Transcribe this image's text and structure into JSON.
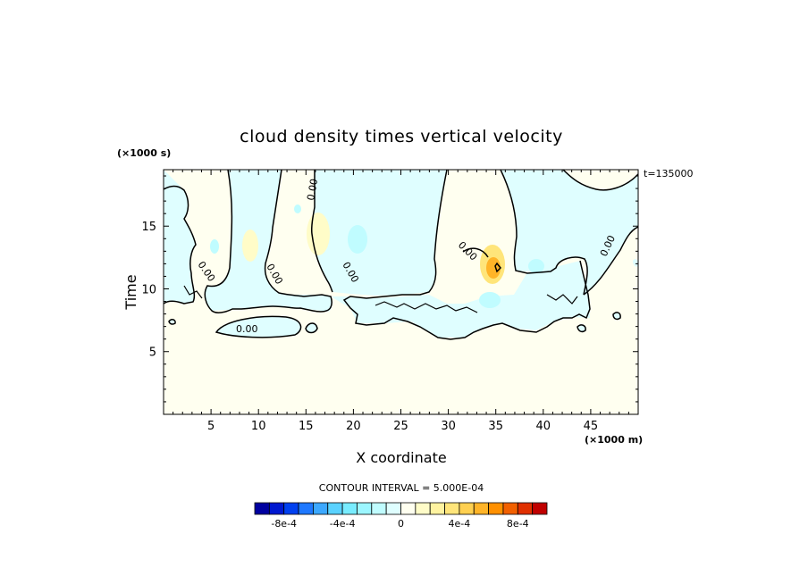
{
  "chart_data": {
    "type": "heatmap",
    "title": "cloud density times vertical velocity",
    "xlabel": "X coordinate",
    "ylabel": "Time",
    "x_units": "(×1000 m)",
    "y_units": "(×1000 s)",
    "time_stamp": "t=135000",
    "xlim": [
      0,
      50
    ],
    "ylim": [
      0,
      19.5
    ],
    "x_ticks": [
      5,
      10,
      15,
      20,
      25,
      30,
      35,
      40,
      45
    ],
    "y_ticks": [
      5,
      10,
      15
    ],
    "x_tick_labels": [
      "5",
      "10",
      "15",
      "20",
      "25",
      "30",
      "35",
      "40",
      "45"
    ],
    "y_tick_labels": [
      "5",
      "10",
      "15"
    ],
    "contour_line_labels": [
      "0.00",
      "0.00",
      "0.00",
      "0.00",
      "0.00",
      "0.00",
      "0.00"
    ],
    "contour_interval_text": "CONTOUR INTERVAL = 5.000E-04",
    "colorbar": {
      "levels": [
        -0.001,
        -0.0009,
        -0.0008,
        -0.0007,
        -0.0006,
        -0.0005,
        -0.0004,
        -0.0003,
        -0.0002,
        -0.0001,
        0,
        0.0001,
        0.0002,
        0.0003,
        0.0004,
        0.0005,
        0.0006,
        0.0007,
        0.0008,
        0.0009,
        0.001
      ],
      "colors": [
        "#0000a0",
        "#0018d0",
        "#0040f0",
        "#1e78ff",
        "#3ca8ff",
        "#5ad2ff",
        "#78ecff",
        "#9cf6ff",
        "#c0fcff",
        "#dffeff",
        "#fffff0",
        "#fffcc8",
        "#fff3a0",
        "#ffe57a",
        "#ffd050",
        "#ffb428",
        "#ff9000",
        "#f26000",
        "#e03000",
        "#c00000"
      ],
      "tick_labels": [
        "-8e-4",
        "-4e-4",
        "0",
        "4e-4",
        "8e-4"
      ],
      "tick_values": [
        -0.0008,
        -0.0004,
        0,
        0.0004,
        0.0008
      ]
    },
    "field_description_values": {
      "background_value_range": [
        0,
        0.0001
      ],
      "cloud_layer_value_range": [
        -0.0001,
        0
      ],
      "max_positive_near": {
        "x": 35,
        "y": 12,
        "value": 0.0006
      },
      "max_negative_near": {
        "x": 20.5,
        "y": 14.5,
        "value": -0.0003
      }
    },
    "colors": {
      "negative_weak": "#dffeff",
      "negative_mid": "#c0fcff",
      "positive_weak": "#fffff0",
      "positive_mid": "#fffcc8",
      "positive_high": "#ffe57a",
      "positive_peak": "#ffb428"
    },
    "grid": false
  }
}
